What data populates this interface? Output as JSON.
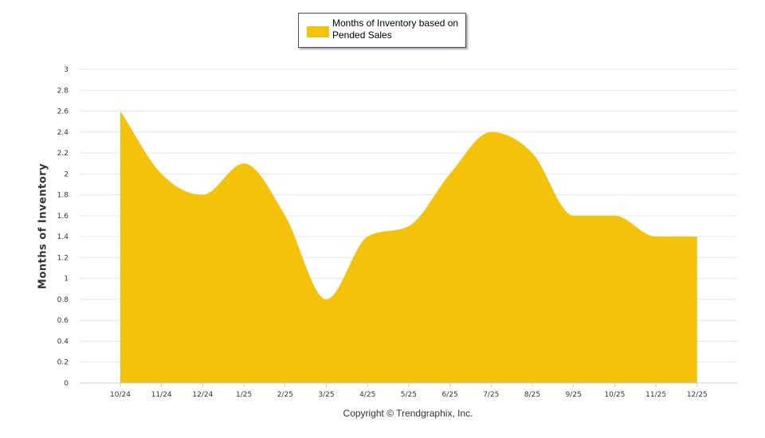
{
  "chart_data": {
    "type": "area",
    "categories": [
      "10/24",
      "11/24",
      "12/24",
      "1/25",
      "2/25",
      "3/25",
      "4/25",
      "5/25",
      "6/25",
      "7/25",
      "8/25",
      "9/25",
      "10/25",
      "11/25",
      "12/25"
    ],
    "series": [
      {
        "name": "Months of Inventory based on Pended Sales",
        "values": [
          2.6,
          2.0,
          1.8,
          2.1,
          1.6,
          0.8,
          1.4,
          1.5,
          2.0,
          2.4,
          2.2,
          1.6,
          1.6,
          1.4,
          1.4
        ],
        "color": "#f5c20b"
      }
    ],
    "title": "",
    "xlabel": "",
    "ylabel": "Months of Inventory",
    "ylim": [
      0,
      3
    ],
    "yticks": [
      "0",
      "0.2",
      "0.4",
      "0.6",
      "0.8",
      "1",
      "1.2",
      "1.4",
      "1.6",
      "1.8",
      "2",
      "2.2",
      "2.4",
      "2.6",
      "2.8",
      "3"
    ],
    "grid": true,
    "legend_position": "top-center"
  },
  "legend": {
    "label": "Months of Inventory based on Pended Sales"
  },
  "footer": {
    "copyright": "Copyright © Trendgraphix, Inc."
  }
}
